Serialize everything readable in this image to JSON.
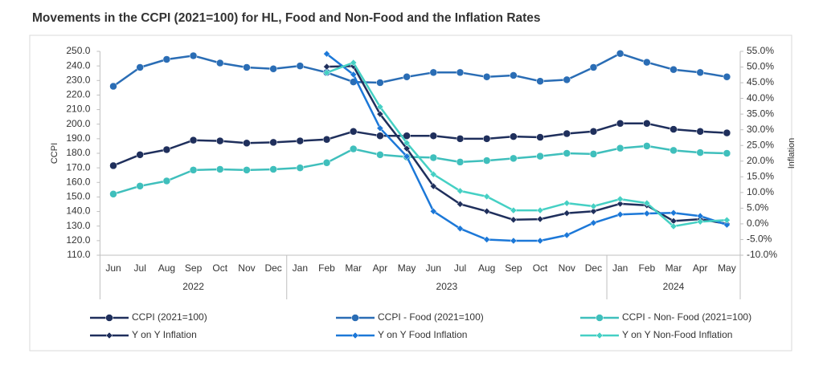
{
  "chart_data": {
    "type": "line",
    "title": "Movements in the CCPI (2021=100) for HL, Food and Non-Food and the Inflation Rates",
    "y_label": "CCPI",
    "y2_label": "Inflation",
    "categories": [
      "Jun",
      "Jul",
      "Aug",
      "Sep",
      "Oct",
      "Nov",
      "Dec",
      "Jan",
      "Feb",
      "Mar",
      "Apr",
      "May",
      "Jun",
      "Jul",
      "Aug",
      "Sep",
      "Oct",
      "Nov",
      "Dec",
      "Jan",
      "Feb",
      "Mar",
      "Apr",
      "May"
    ],
    "years": [
      "2022",
      null,
      null,
      null,
      null,
      null,
      null,
      "2023",
      null,
      null,
      null,
      null,
      null,
      null,
      null,
      null,
      null,
      null,
      null,
      "2024",
      null,
      null,
      null,
      null
    ],
    "ylim": [
      110,
      250
    ],
    "yticks": [
      {
        "value": 110,
        "label": "110.0"
      },
      {
        "value": 120,
        "label": "120.0"
      },
      {
        "value": 130,
        "label": "130.0"
      },
      {
        "value": 140,
        "label": "140.0"
      },
      {
        "value": 150,
        "label": "150.0"
      },
      {
        "value": 160,
        "label": "160.0"
      },
      {
        "value": 170,
        "label": "170.0"
      },
      {
        "value": 180,
        "label": "180.0"
      },
      {
        "value": 190,
        "label": "190.0"
      },
      {
        "value": 200,
        "label": "200.0"
      },
      {
        "value": 210,
        "label": "210.0"
      },
      {
        "value": 220,
        "label": "220.0"
      },
      {
        "value": 230,
        "label": "230.0"
      },
      {
        "value": 240,
        "label": "240.0"
      },
      {
        "value": 250,
        "label": "250.0"
      }
    ],
    "y2lim": [
      -10,
      55
    ],
    "y2ticks": [
      {
        "value": -10,
        "label": "-10.0%"
      },
      {
        "value": -5,
        "label": "-5.0%"
      },
      {
        "value": 0,
        "label": "0.0%"
      },
      {
        "value": 5,
        "label": "5.0%"
      },
      {
        "value": 10,
        "label": "10.0%"
      },
      {
        "value": 15,
        "label": "15.0%"
      },
      {
        "value": 20,
        "label": "20.0%"
      },
      {
        "value": 25,
        "label": "25.0%"
      },
      {
        "value": 30,
        "label": "30.0%"
      },
      {
        "value": 35,
        "label": "35.0%"
      },
      {
        "value": 40,
        "label": "40.0%"
      },
      {
        "value": 45,
        "label": "45.0%"
      },
      {
        "value": 50,
        "label": "50.0%"
      },
      {
        "value": 55,
        "label": "55.0%"
      }
    ],
    "series": [
      {
        "name": "CCPI (2021=100)",
        "color": "#1f2f5c",
        "marker": "circle",
        "values": [
          171.5,
          179,
          182.5,
          189,
          188.5,
          187,
          187.5,
          188.5,
          189.5,
          195,
          192,
          192,
          192,
          190,
          190,
          191.5,
          191,
          193.5,
          195,
          200.5,
          200.5,
          196.5,
          195,
          194
        ]
      },
      {
        "name": "CCPI - Food (2021=100)",
        "color": "#2a6db5",
        "marker": "circle",
        "values": [
          226,
          239,
          244.5,
          247,
          242,
          239,
          238,
          240,
          235.5,
          229,
          228.5,
          232.5,
          235.5,
          235.5,
          232.5,
          233.5,
          229.5,
          230.5,
          239,
          248.5,
          242.5,
          237.5,
          235.5,
          232.5
        ]
      },
      {
        "name": "CCPI - Non- Food (2021=100)",
        "color": "#3fbfbc",
        "marker": "circle",
        "values": [
          152,
          157.5,
          161,
          168.5,
          169,
          168.5,
          169,
          170,
          173.5,
          183,
          179,
          177.5,
          177,
          174,
          175,
          176.5,
          178,
          180,
          179.5,
          183.5,
          185,
          182,
          180.5,
          180
        ]
      },
      {
        "name": "Y on Y  Inflation",
        "color": "#1f2f5c",
        "marker": "diamond",
        "axis": "y2",
        "values": [
          null,
          null,
          null,
          null,
          null,
          null,
          null,
          null,
          50.1,
          50.3,
          35,
          24,
          12,
          6.3,
          4,
          1.3,
          1.5,
          3.4,
          4,
          6.4,
          5.9,
          0.9,
          1.5,
          0
        ]
      },
      {
        "name": "Y on Y  Food Inflation",
        "color": "#1c78d8",
        "marker": "diamond",
        "axis": "y2",
        "values": [
          null,
          null,
          null,
          null,
          null,
          null,
          null,
          null,
          54.2,
          47.6,
          30.5,
          21.5,
          4,
          -1.5,
          -5,
          -5.4,
          -5.4,
          -3.6,
          0.3,
          3,
          3.3,
          3.5,
          2.5,
          -0.3
        ]
      },
      {
        "name": "Y on Y  Non-Food Inflation",
        "color": "#45d0c4",
        "marker": "diamond",
        "axis": "y2",
        "values": [
          null,
          null,
          null,
          null,
          null,
          null,
          null,
          null,
          48.2,
          51.4,
          37.3,
          25.8,
          15.8,
          10.5,
          8.7,
          4.3,
          4.3,
          6.6,
          5.6,
          7.9,
          6.6,
          -0.8,
          0.7,
          1.2
        ]
      }
    ]
  }
}
